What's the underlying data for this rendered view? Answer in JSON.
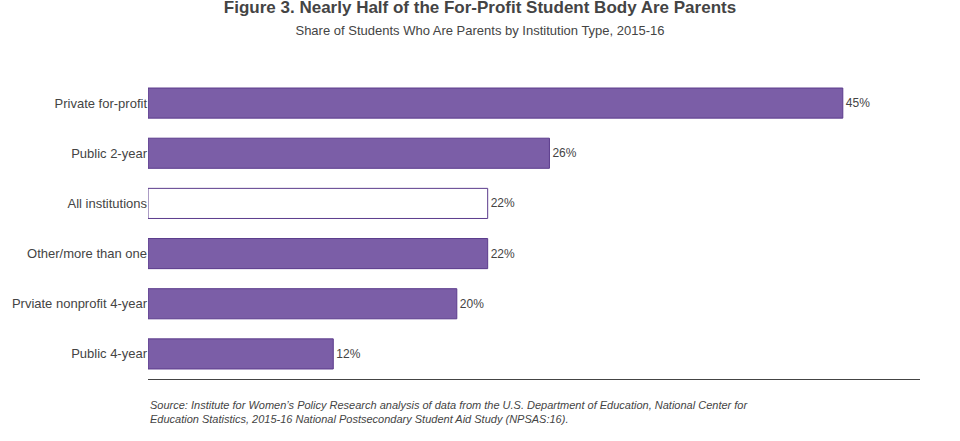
{
  "chart_data": {
    "type": "bar",
    "orientation": "horizontal",
    "title": "Figure 3. Nearly Half of the For-Profit Student Body Are Parents",
    "subtitle": "Share of Students Who Are Parents by Institution Type, 2015-16",
    "annotations": [
      "Source: Institute for Women’s Policy Research analysis of data from the U.S. Department of Education, National Center for\nEducation Statistics, 2015-16 National Postsecondary Student Aid Study (NPSAS:16)."
    ],
    "categories": [
      "Private for-profit",
      "Public 2-year",
      "All institutions",
      "Other/more than one",
      "Prviate nonprofit 4-year",
      "Public 4-year"
    ],
    "values": [
      45,
      26,
      22,
      22,
      20,
      12
    ],
    "value_labels": [
      "45%",
      "26%",
      "22%",
      "22%",
      "20%",
      "12%"
    ],
    "data_labels": true,
    "colors": [
      "#7B5EA7",
      "#7B5EA7",
      "#FFFFFF",
      "#7B5EA7",
      "#7B5EA7",
      "#7B5EA7"
    ],
    "xlim": [
      0,
      50
    ],
    "tick_labels": "y",
    "grid": false
  }
}
